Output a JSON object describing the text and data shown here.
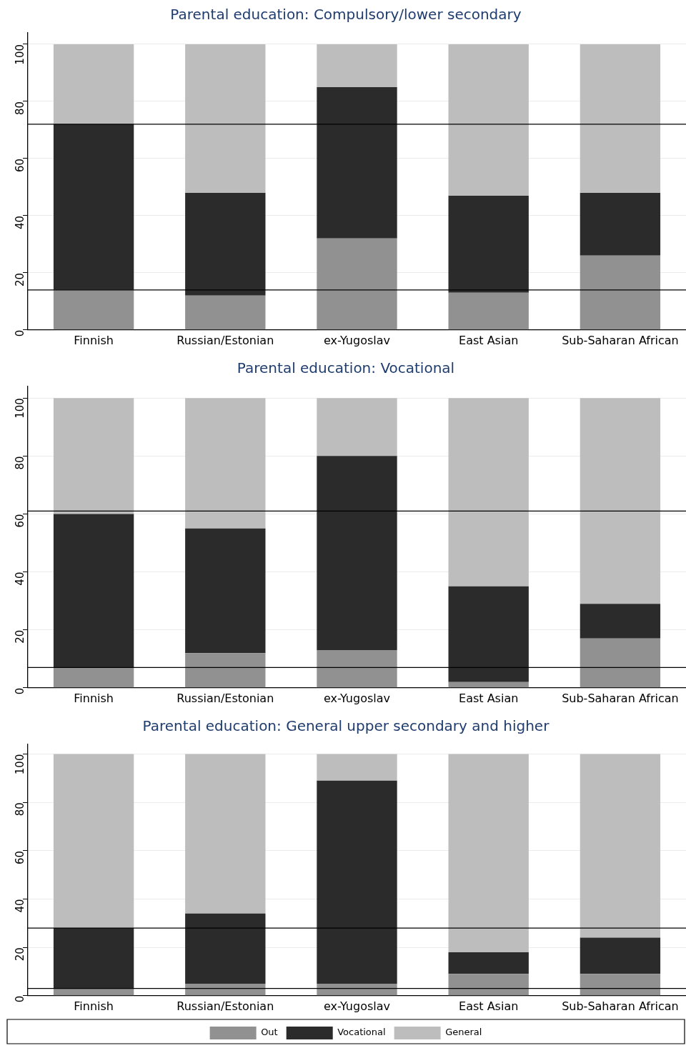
{
  "chart_data": [
    {
      "type": "bar",
      "title": "Parental education: Compulsory/lower secondary",
      "categories": [
        "Finnish",
        "Russian/Estonian",
        "ex-Yugoslav",
        "East Asian",
        "Sub-Saharan African"
      ],
      "stacked": true,
      "ylim": [
        0,
        104
      ],
      "yticks": [
        0,
        20,
        40,
        60,
        80,
        100
      ],
      "grid": "y",
      "series": [
        {
          "color": "#919191",
          "values": [
            14,
            12,
            32,
            13,
            26
          ]
        },
        {
          "color": "#2b2b2b",
          "values": [
            58,
            36,
            53,
            34,
            22
          ]
        },
        {
          "color": "#bdbdbd",
          "values": [
            28,
            52,
            15,
            53,
            52
          ]
        }
      ],
      "ref_lines": [
        {
          "axis": "y",
          "value": 72,
          "color": "#000000"
        },
        {
          "axis": "y",
          "value": 14,
          "color": "#000000"
        }
      ]
    },
    {
      "type": "bar",
      "title": "Parental education: Vocational",
      "categories": [
        "Finnish",
        "Russian/Estonian",
        "ex-Yugoslav",
        "East Asian",
        "Sub-Saharan African"
      ],
      "stacked": true,
      "ylim": [
        0,
        104
      ],
      "yticks": [
        0,
        20,
        40,
        60,
        80,
        100
      ],
      "grid": "y",
      "series": [
        {
          "color": "#919191",
          "values": [
            7,
            12,
            13,
            2,
            17
          ]
        },
        {
          "color": "#2b2b2b",
          "values": [
            53,
            43,
            67,
            33,
            12
          ]
        },
        {
          "color": "#bdbdbd",
          "values": [
            40,
            45,
            20,
            65,
            71
          ]
        }
      ],
      "ref_lines": [
        {
          "axis": "y",
          "value": 61,
          "color": "#000000"
        },
        {
          "axis": "y",
          "value": 7,
          "color": "#000000"
        }
      ]
    },
    {
      "type": "bar",
      "title": "Parental education: General upper secondary and higher",
      "categories": [
        "Finnish",
        "Russian/Estonian",
        "ex-Yugoslav",
        "East Asian",
        "Sub-Saharan African"
      ],
      "stacked": true,
      "ylim": [
        0,
        104
      ],
      "yticks": [
        0,
        20,
        40,
        60,
        80,
        100
      ],
      "grid": "y",
      "legend": "bottom",
      "series": [
        {
          "name": "Out",
          "color": "#919191",
          "values": [
            3,
            5,
            5,
            9,
            9
          ]
        },
        {
          "name": "Vocational",
          "color": "#2b2b2b",
          "values": [
            25,
            29,
            84,
            9,
            15
          ]
        },
        {
          "name": "General",
          "color": "#bdbdbd",
          "values": [
            72,
            66,
            11,
            82,
            76
          ]
        }
      ],
      "ref_lines": [
        {
          "axis": "y",
          "value": 28,
          "color": "#000000"
        },
        {
          "axis": "y",
          "value": 3,
          "color": "#000000"
        }
      ]
    }
  ]
}
